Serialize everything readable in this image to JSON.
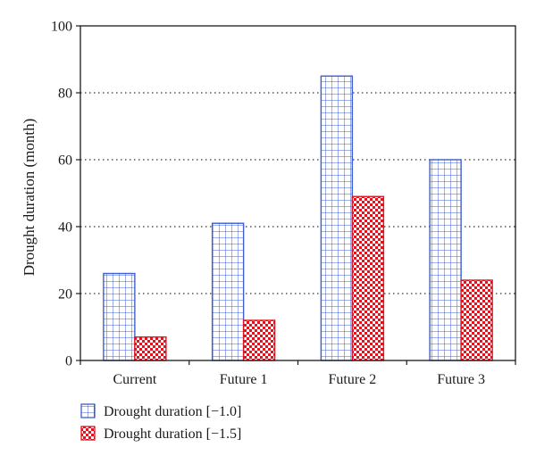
{
  "chart_data": {
    "type": "bar",
    "categories": [
      "Current",
      "Future 1",
      "Future 2",
      "Future 3"
    ],
    "series": [
      {
        "name": "Drought duration [−1.0]",
        "values": [
          26,
          41,
          85,
          60
        ],
        "color": "#3f5fd0",
        "pattern": "grid"
      },
      {
        "name": "Drought duration [−1.5]",
        "values": [
          7,
          12,
          49,
          24
        ],
        "color": "#e0141e",
        "pattern": "checker"
      }
    ],
    "title": "",
    "xlabel": "",
    "ylabel": "Drought duration (month)",
    "ylim": [
      0,
      100
    ],
    "yticks": [
      0,
      20,
      40,
      60,
      80,
      100
    ],
    "grid": "horizontal dotted",
    "legend_position": "bottom-left"
  }
}
